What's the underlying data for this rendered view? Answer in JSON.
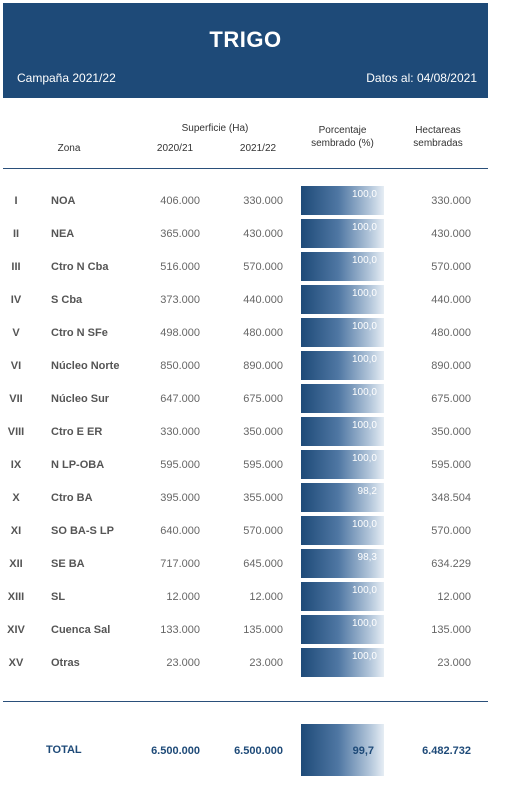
{
  "header": {
    "title": "TRIGO",
    "season": "Campaña 2021/22",
    "date": "Datos al: 04/08/2021"
  },
  "columns": {
    "zona": "Zona",
    "superficie": "Superficie (Ha)",
    "y2020": "2020/21",
    "y2021": "2021/22",
    "pct_line1": "Porcentaje",
    "pct_line2": "sembrado (%)",
    "has_line1": "Hectareas",
    "has_line2": "sembradas"
  },
  "rows": [
    {
      "roman": "I",
      "zona": "NOA",
      "sup2020": "406.000",
      "sup2021": "330.000",
      "pct": "100,0",
      "has": "330.000"
    },
    {
      "roman": "II",
      "zona": "NEA",
      "sup2020": "365.000",
      "sup2021": "430.000",
      "pct": "100,0",
      "has": "430.000"
    },
    {
      "roman": "III",
      "zona": "Ctro N Cba",
      "sup2020": "516.000",
      "sup2021": "570.000",
      "pct": "100,0",
      "has": "570.000"
    },
    {
      "roman": "IV",
      "zona": "S Cba",
      "sup2020": "373.000",
      "sup2021": "440.000",
      "pct": "100,0",
      "has": "440.000"
    },
    {
      "roman": "V",
      "zona": "Ctro N SFe",
      "sup2020": "498.000",
      "sup2021": "480.000",
      "pct": "100,0",
      "has": "480.000"
    },
    {
      "roman": "VI",
      "zona": "Núcleo Norte",
      "sup2020": "850.000",
      "sup2021": "890.000",
      "pct": "100,0",
      "has": "890.000"
    },
    {
      "roman": "VII",
      "zona": "Núcleo Sur",
      "sup2020": "647.000",
      "sup2021": "675.000",
      "pct": "100,0",
      "has": "675.000"
    },
    {
      "roman": "VIII",
      "zona": "Ctro E ER",
      "sup2020": "330.000",
      "sup2021": "350.000",
      "pct": "100,0",
      "has": "350.000"
    },
    {
      "roman": "IX",
      "zona": "N LP-OBA",
      "sup2020": "595.000",
      "sup2021": "595.000",
      "pct": "100,0",
      "has": "595.000"
    },
    {
      "roman": "X",
      "zona": "Ctro BA",
      "sup2020": "395.000",
      "sup2021": "355.000",
      "pct": "98,2",
      "has": "348.504"
    },
    {
      "roman": "XI",
      "zona": "SO BA-S LP",
      "sup2020": "640.000",
      "sup2021": "570.000",
      "pct": "100,0",
      "has": "570.000"
    },
    {
      "roman": "XII",
      "zona": "SE BA",
      "sup2020": "717.000",
      "sup2021": "645.000",
      "pct": "98,3",
      "has": "634.229"
    },
    {
      "roman": "XIII",
      "zona": "SL",
      "sup2020": "12.000",
      "sup2021": "12.000",
      "pct": "100,0",
      "has": "12.000"
    },
    {
      "roman": "XIV",
      "zona": "Cuenca Sal",
      "sup2020": "133.000",
      "sup2021": "135.000",
      "pct": "100,0",
      "has": "135.000"
    },
    {
      "roman": "XV",
      "zona": "Otras",
      "sup2020": "23.000",
      "sup2021": "23.000",
      "pct": "100,0",
      "has": "23.000"
    }
  ],
  "total": {
    "label": "TOTAL",
    "sup2020": "6.500.000",
    "sup2021": "6.500.000",
    "pct": "99,7",
    "has": "6.482.732"
  }
}
